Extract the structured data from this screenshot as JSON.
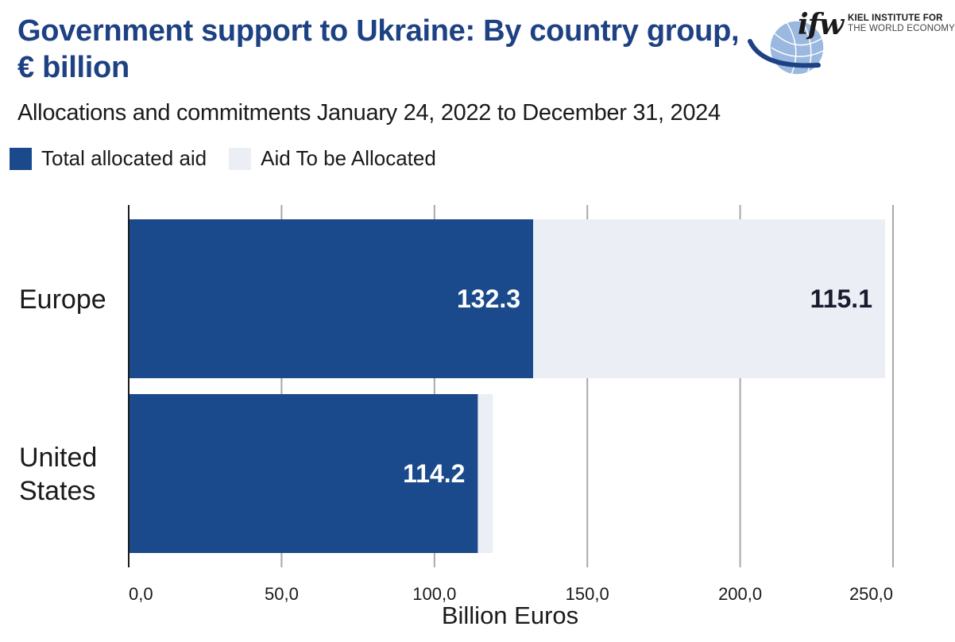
{
  "title": "Government support to Ukraine: By country group, € billion",
  "subtitle": "Allocations and commitments January 24, 2022 to December 31, 2024",
  "logo": {
    "mark": "ifw",
    "line1": "KIEL INSTITUTE FOR",
    "line2": "THE WORLD ECONOMY"
  },
  "colors": {
    "allocated": "#1b4a8c",
    "to_be_allocated": "#eceef5",
    "title": "#1d4183",
    "grid": "#a8a8a8"
  },
  "chart_data": {
    "type": "bar",
    "orientation": "horizontal",
    "stacked": true,
    "categories": [
      "Europe",
      "United States"
    ],
    "series": [
      {
        "name": "Total allocated aid",
        "values": [
          132.3,
          114.2
        ],
        "labels": [
          "132.3",
          "114.2"
        ]
      },
      {
        "name": "Aid To be Allocated",
        "values": [
          115.1,
          4.9
        ],
        "labels": [
          "115.1",
          ""
        ]
      }
    ],
    "xlabel": "Billion Euros",
    "xlim": [
      0,
      250
    ],
    "xticks": [
      0,
      50,
      100,
      150,
      200,
      250
    ],
    "xtick_labels": [
      "0,0",
      "50,0",
      "100,0",
      "150,0",
      "200,0",
      "250,0"
    ],
    "grid": "vertical",
    "legend_position": "top-left"
  }
}
